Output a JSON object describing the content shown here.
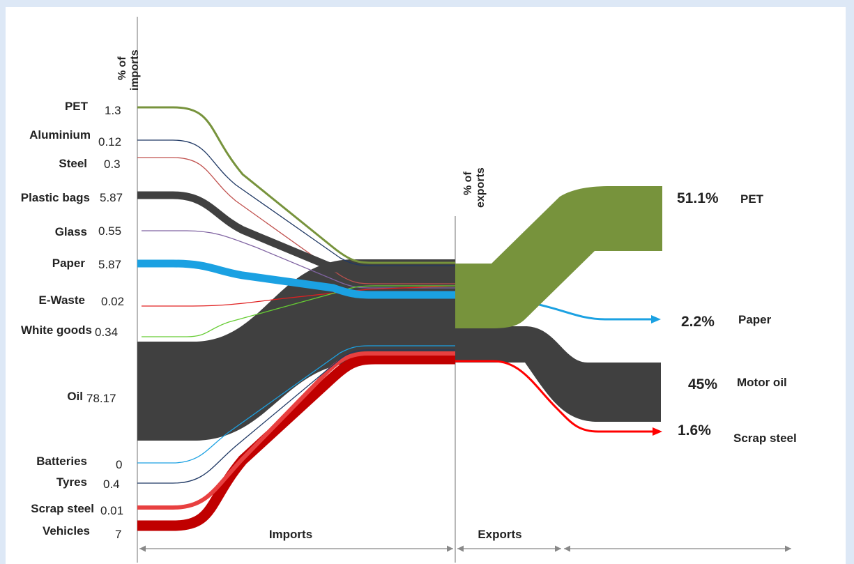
{
  "diagram": {
    "imports_axis_title": [
      "% of",
      "imports"
    ],
    "exports_axis_title": [
      "% of",
      "exports"
    ],
    "imports": [
      {
        "name": "PET",
        "value": "1.3",
        "color": "#77933c"
      },
      {
        "name": "Aluminium",
        "value": "0.12",
        "color": "#1f3864"
      },
      {
        "name": "Steel",
        "value": "0.3",
        "color": "#c0504d"
      },
      {
        "name": "Plastic bags",
        "value": "5.87",
        "color": "#404040"
      },
      {
        "name": "Glass",
        "value": "0.55",
        "color": "#8064a2"
      },
      {
        "name": "Paper",
        "value": "5.87",
        "color": "#1ba1e2"
      },
      {
        "name": "E-Waste",
        "value": "0.02",
        "color": "#e02020"
      },
      {
        "name": "White goods",
        "value": "0.34",
        "color": "#66cc33"
      },
      {
        "name": "Oil",
        "value": "78.17",
        "color": "#404040"
      },
      {
        "name": "Batteries",
        "value": "0",
        "color": "#1ba1e2"
      },
      {
        "name": "Tyres",
        "value": "0.4",
        "color": "#1f3864"
      },
      {
        "name": "Scrap steel",
        "value": "0.01",
        "color": "#e84040"
      },
      {
        "name": "Vehicles",
        "value": "7",
        "color": "#c00000"
      }
    ],
    "exports": [
      {
        "name": "PET",
        "percent": "51.1%",
        "color": "#77933c"
      },
      {
        "name": "Paper",
        "percent": "2.2%",
        "color": "#1ba1e2"
      },
      {
        "name": "Motor oil",
        "percent": "45%",
        "color": "#404040"
      },
      {
        "name": "Scrap steel",
        "percent": "1.6%",
        "color": "#ff0000"
      }
    ],
    "sections": {
      "imports": "Imports",
      "exports": "Exports"
    }
  }
}
